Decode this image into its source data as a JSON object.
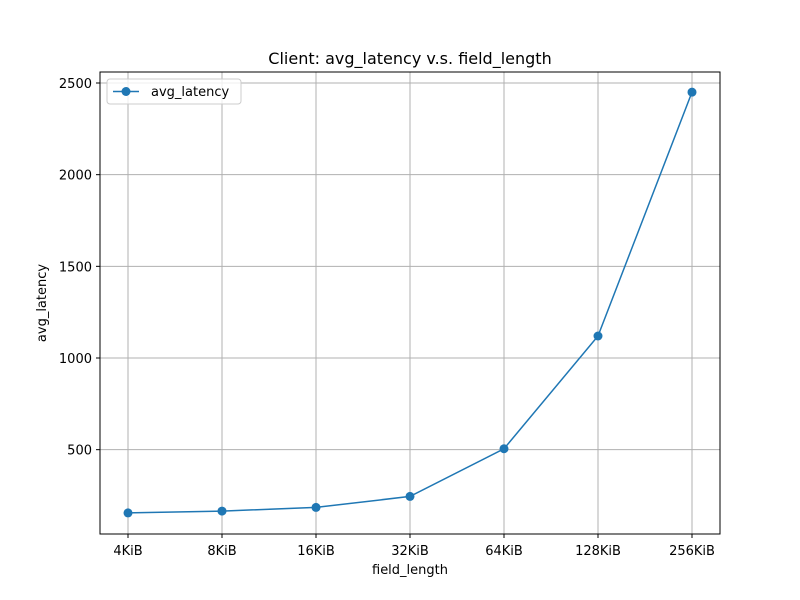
{
  "chart_data": {
    "type": "line",
    "title": "Client: avg_latency v.s. field_length",
    "xlabel": "field_length",
    "ylabel": "avg_latency",
    "categories": [
      "4KiB",
      "8KiB",
      "16KiB",
      "32KiB",
      "64KiB",
      "128KiB",
      "256KiB"
    ],
    "series": [
      {
        "name": "avg_latency",
        "color": "#1f77b4",
        "marker": "circle",
        "values": [
          155,
          165,
          185,
          245,
          505,
          1120,
          2450
        ]
      }
    ],
    "yticks": [
      500,
      1000,
      1500,
      2000,
      2500
    ],
    "ylim": [
      40,
      2560
    ],
    "grid": true,
    "legend_position": "top-left"
  }
}
